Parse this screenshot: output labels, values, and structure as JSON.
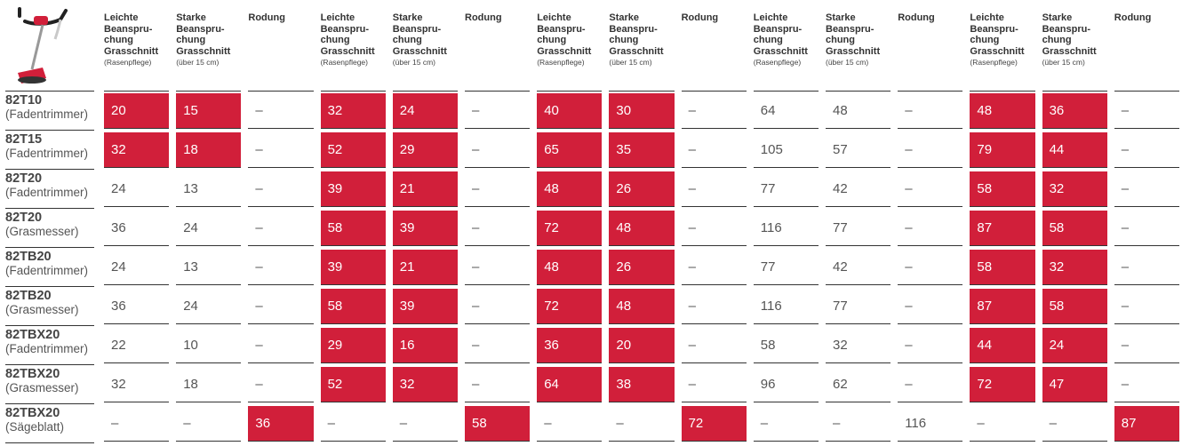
{
  "table": {
    "columns": [
      {
        "lines": [
          "Leichte",
          "Beanspru-",
          "chung",
          "Grasschnitt"
        ],
        "note": "(Rasenpflege)"
      },
      {
        "lines": [
          "Starke",
          "Beanspru-",
          "chung",
          "Grasschnitt"
        ],
        "note": "(über 15 cm)"
      },
      {
        "lines": [
          "Rodung"
        ]
      },
      {
        "lines": [
          "Leichte",
          "Beanspru-",
          "chung",
          "Grasschnitt"
        ],
        "note": "(Rasenpflege)"
      },
      {
        "lines": [
          "Starke",
          "Beanspru-",
          "chung",
          "Grasschnitt"
        ],
        "note": "(über 15 cm)"
      },
      {
        "lines": [
          "Rodung"
        ]
      },
      {
        "lines": [
          "Leichte",
          "Beanspru-",
          "chung",
          "Grasschnitt"
        ],
        "note": "(Rasenpflege)"
      },
      {
        "lines": [
          "Starke",
          "Beanspru-",
          "chung",
          "Grasschnitt"
        ],
        "note": "(über 15 cm)"
      },
      {
        "lines": [
          "Rodung"
        ]
      },
      {
        "lines": [
          "Leichte",
          "Beanspru-",
          "chung",
          "Grasschnitt"
        ],
        "note": "(Rasenpflege)"
      },
      {
        "lines": [
          "Starke",
          "Beanspru-",
          "chung",
          "Grasschnitt"
        ],
        "note": "(über 15 cm)"
      },
      {
        "lines": [
          "Rodung"
        ]
      },
      {
        "lines": [
          "Leichte",
          "Beanspru-",
          "chung",
          "Grasschnitt"
        ],
        "note": "(Rasenpflege)"
      },
      {
        "lines": [
          "Starke",
          "Beanspru-",
          "chung",
          "Grasschnitt"
        ],
        "note": "(über 15 cm)"
      },
      {
        "lines": [
          "Rodung"
        ]
      }
    ],
    "highlight_color": "#d11f3a",
    "rows": [
      {
        "name": "82T10",
        "type": "(Fadentrimmer)",
        "cells": [
          20,
          15,
          "–",
          32,
          24,
          "–",
          40,
          30,
          "–",
          64,
          48,
          "–",
          48,
          36,
          "–"
        ],
        "highlighted": [
          0,
          1,
          3,
          4,
          6,
          7,
          12,
          13
        ]
      },
      {
        "name": "82T15",
        "type": "(Fadentrimmer)",
        "cells": [
          32,
          18,
          "–",
          52,
          29,
          "–",
          65,
          35,
          "–",
          105,
          57,
          "–",
          79,
          44,
          "–"
        ],
        "highlighted": [
          0,
          1,
          3,
          4,
          6,
          7,
          12,
          13
        ]
      },
      {
        "name": "82T20",
        "type": "(Fadentrimmer)",
        "cells": [
          24,
          13,
          "–",
          39,
          21,
          "–",
          48,
          26,
          "–",
          77,
          42,
          "–",
          58,
          32,
          "–"
        ],
        "highlighted": [
          3,
          4,
          6,
          7,
          12,
          13
        ]
      },
      {
        "name": "82T20",
        "type": "(Grasmesser)",
        "cells": [
          36,
          24,
          "–",
          58,
          39,
          "–",
          72,
          48,
          "–",
          116,
          77,
          "–",
          87,
          58,
          "–"
        ],
        "highlighted": [
          3,
          4,
          6,
          7,
          12,
          13
        ]
      },
      {
        "name": "82TB20",
        "type": "(Fadentrimmer)",
        "cells": [
          24,
          13,
          "–",
          39,
          21,
          "–",
          48,
          26,
          "–",
          77,
          42,
          "–",
          58,
          32,
          "–"
        ],
        "highlighted": [
          3,
          4,
          6,
          7,
          12,
          13
        ]
      },
      {
        "name": "82TB20",
        "type": "(Grasmesser)",
        "cells": [
          36,
          24,
          "–",
          58,
          39,
          "–",
          72,
          48,
          "–",
          116,
          77,
          "–",
          87,
          58,
          "–"
        ],
        "highlighted": [
          3,
          4,
          6,
          7,
          12,
          13
        ]
      },
      {
        "name": "82TBX20",
        "type": "(Fadentrimmer)",
        "cells": [
          22,
          10,
          "–",
          29,
          16,
          "–",
          36,
          20,
          "–",
          58,
          32,
          "–",
          44,
          24,
          "–"
        ],
        "highlighted": [
          3,
          4,
          6,
          7,
          12,
          13
        ]
      },
      {
        "name": "82TBX20",
        "type": "(Grasmesser)",
        "cells": [
          32,
          18,
          "–",
          52,
          32,
          "–",
          64,
          38,
          "–",
          96,
          62,
          "–",
          72,
          47,
          "–"
        ],
        "highlighted": [
          3,
          4,
          6,
          7,
          12,
          13
        ]
      },
      {
        "name": "82TBX20",
        "type": "(Sägeblatt)",
        "cells": [
          "–",
          "–",
          36,
          "–",
          "–",
          58,
          "–",
          "–",
          72,
          "–",
          "–",
          116,
          "–",
          "–",
          87
        ],
        "highlighted": [
          2,
          5,
          8,
          14
        ]
      }
    ]
  }
}
